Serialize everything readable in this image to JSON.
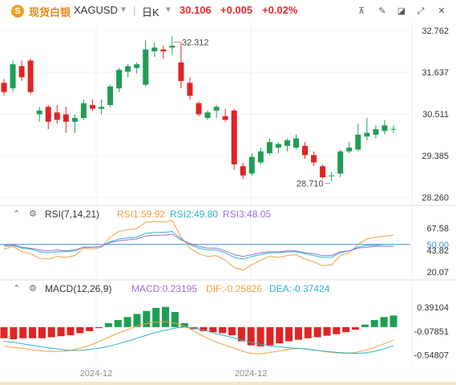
{
  "header": {
    "name": "现货白银",
    "symbol": "XAGUSD",
    "timeframe": "日K",
    "price": "30.106",
    "change": "+0.005",
    "change_pct": "+0.02%",
    "price_color": "#e62929",
    "icons": [
      "drawing-tool-icon",
      "pencil-icon",
      "eraser-icon",
      "expand-icon",
      "close-icon"
    ]
  },
  "colors": {
    "up": "#1f9d55",
    "down": "#e02424",
    "rsi1": "#f0a040",
    "rsi2": "#2ab6c8",
    "rsi3": "#a070d0",
    "macd_line": "#f0a040",
    "dea_line": "#2ab6c8",
    "hline": "#3a8ee6"
  },
  "rsi": {
    "title": "RSI(7,14,21)",
    "rsi1": "RSI1:59.92",
    "rsi2": "RSI2:49.80",
    "rsi3": "RSI3:48.05"
  },
  "macd": {
    "title": "MACD(12,26,9)",
    "macd": "MACD:0.23195",
    "dif": "DIF:-0.25826",
    "dea": "DEA:-0.37424"
  },
  "chart_data": [
    {
      "type": "candlestick",
      "y_ticks": [
        "32.762",
        "31.637",
        "30.511",
        "29.385",
        "28.260"
      ],
      "ylim": [
        28.0,
        33.0
      ],
      "annotations": [
        {
          "label": "32.312",
          "value": 32.312
        },
        {
          "label": "28.710",
          "value": 28.71
        }
      ],
      "x_labels": [
        "2024-12",
        "2024-12"
      ],
      "ohlc": [
        [
          31.35,
          31.45,
          31.0,
          31.1
        ],
        [
          31.2,
          31.95,
          31.1,
          31.85
        ],
        [
          31.8,
          31.95,
          31.4,
          31.5
        ],
        [
          31.95,
          32.0,
          31.05,
          31.1
        ],
        [
          30.5,
          30.7,
          30.3,
          30.6
        ],
        [
          30.7,
          30.75,
          30.1,
          30.3
        ],
        [
          30.55,
          30.75,
          30.25,
          30.35
        ],
        [
          30.5,
          30.7,
          30.0,
          30.3
        ],
        [
          30.3,
          30.5,
          30.0,
          30.4
        ],
        [
          30.4,
          30.9,
          30.35,
          30.8
        ],
        [
          30.75,
          30.9,
          30.6,
          30.65
        ],
        [
          30.65,
          30.9,
          30.5,
          30.7
        ],
        [
          30.75,
          31.3,
          30.7,
          31.25
        ],
        [
          31.2,
          31.75,
          31.1,
          31.7
        ],
        [
          31.65,
          31.85,
          31.5,
          31.8
        ],
        [
          31.75,
          31.9,
          31.6,
          31.85
        ],
        [
          31.3,
          32.5,
          31.25,
          32.25
        ],
        [
          32.2,
          32.45,
          32.05,
          32.3
        ],
        [
          32.25,
          32.35,
          32.0,
          32.2
        ],
        [
          32.3,
          32.6,
          32.1,
          32.35
        ],
        [
          31.9,
          32.45,
          31.2,
          31.4
        ],
        [
          31.35,
          31.5,
          30.9,
          31.0
        ],
        [
          30.8,
          30.85,
          30.45,
          30.5
        ],
        [
          30.4,
          30.6,
          30.35,
          30.55
        ],
        [
          30.6,
          30.75,
          30.4,
          30.7
        ],
        [
          30.45,
          30.65,
          30.3,
          30.35
        ],
        [
          30.6,
          30.65,
          29.0,
          29.15
        ],
        [
          29.1,
          29.2,
          28.75,
          28.85
        ],
        [
          28.9,
          29.45,
          28.85,
          29.35
        ],
        [
          29.2,
          29.6,
          29.15,
          29.5
        ],
        [
          29.45,
          29.85,
          29.4,
          29.75
        ],
        [
          29.6,
          29.75,
          29.45,
          29.7
        ],
        [
          29.65,
          29.85,
          29.5,
          29.8
        ],
        [
          29.6,
          29.95,
          29.55,
          29.85
        ],
        [
          29.65,
          29.75,
          29.3,
          29.4
        ],
        [
          29.4,
          29.5,
          29.1,
          29.2
        ],
        [
          29.1,
          29.15,
          28.75,
          28.8
        ],
        [
          28.85,
          28.95,
          28.7,
          28.85
        ],
        [
          28.9,
          29.55,
          28.8,
          29.5
        ],
        [
          29.5,
          29.75,
          29.45,
          29.6
        ],
        [
          29.55,
          30.25,
          29.5,
          29.95
        ],
        [
          29.9,
          30.4,
          29.8,
          30.0
        ],
        [
          29.95,
          30.2,
          29.85,
          30.1
        ],
        [
          30.05,
          30.35,
          29.95,
          30.2
        ],
        [
          30.1,
          30.2,
          30.0,
          30.106
        ]
      ]
    },
    {
      "type": "line",
      "y_ticks": [
        "67.58",
        "50.00",
        "43.82",
        "20.07"
      ],
      "ylim": [
        15,
        75
      ],
      "reference_line": 50.0,
      "series": [
        {
          "name": "RSI1",
          "values": [
            45,
            48,
            42,
            40,
            35,
            34,
            37,
            36,
            38,
            46,
            45,
            47,
            58,
            64,
            66,
            67,
            74,
            75,
            74,
            76,
            58,
            46,
            40,
            37,
            38,
            33,
            25,
            22,
            28,
            33,
            37,
            36,
            38,
            39,
            34,
            31,
            27,
            28,
            38,
            41,
            50,
            56,
            58,
            59,
            60
          ]
        },
        {
          "name": "RSI2",
          "values": [
            48,
            49,
            46,
            45,
            42,
            41,
            42,
            42,
            43,
            47,
            47,
            48,
            53,
            56,
            57,
            58,
            62,
            63,
            63,
            64,
            56,
            50,
            46,
            44,
            44,
            41,
            36,
            34,
            37,
            39,
            41,
            41,
            42,
            42,
            40,
            38,
            36,
            36,
            41,
            43,
            47,
            49,
            49,
            50,
            50
          ]
        },
        {
          "name": "RSI3",
          "values": [
            49,
            50,
            47,
            46,
            44,
            43,
            44,
            43,
            44,
            47,
            47,
            48,
            52,
            54,
            55,
            56,
            59,
            60,
            60,
            61,
            55,
            51,
            48,
            46,
            46,
            43,
            39,
            37,
            39,
            41,
            42,
            42,
            43,
            43,
            41,
            40,
            38,
            38,
            42,
            43,
            46,
            47,
            48,
            48,
            48
          ]
        }
      ]
    },
    {
      "type": "bar+line",
      "y_ticks": [
        "0.39104",
        "-0.07851",
        "-0.54807"
      ],
      "ylim": [
        -0.7,
        0.6
      ],
      "series": [
        {
          "name": "MACD",
          "values": [
            -0.22,
            -0.24,
            -0.22,
            -0.22,
            -0.22,
            -0.2,
            -0.18,
            -0.16,
            -0.12,
            -0.08,
            -0.02,
            0.08,
            0.14,
            0.2,
            0.26,
            0.32,
            0.38,
            0.4,
            0.3,
            0.08,
            -0.04,
            -0.08,
            -0.1,
            -0.12,
            -0.16,
            -0.28,
            -0.36,
            -0.38,
            -0.36,
            -0.32,
            -0.28,
            -0.25,
            -0.22,
            -0.2,
            -0.17,
            -0.14,
            -0.1,
            -0.05,
            0.05,
            0.14,
            0.2,
            0.23
          ]
        },
        {
          "name": "DIF",
          "values": [
            -0.38,
            -0.4,
            -0.42,
            -0.45,
            -0.47,
            -0.48,
            -0.48,
            -0.46,
            -0.42,
            -0.36,
            -0.29,
            -0.2,
            -0.12,
            -0.05,
            0.02,
            0.07,
            0.1,
            0.11,
            0.08,
            0.02,
            -0.08,
            -0.18,
            -0.27,
            -0.34,
            -0.4,
            -0.47,
            -0.52,
            -0.53,
            -0.5,
            -0.47,
            -0.44,
            -0.42,
            -0.43,
            -0.46,
            -0.49,
            -0.51,
            -0.52,
            -0.5,
            -0.46,
            -0.4,
            -0.33,
            -0.26
          ]
        },
        {
          "name": "DEA",
          "values": [
            -0.28,
            -0.3,
            -0.33,
            -0.36,
            -0.39,
            -0.42,
            -0.44,
            -0.46,
            -0.46,
            -0.44,
            -0.42,
            -0.38,
            -0.33,
            -0.28,
            -0.22,
            -0.16,
            -0.1,
            -0.06,
            -0.02,
            0.0,
            -0.02,
            -0.06,
            -0.11,
            -0.16,
            -0.2,
            -0.25,
            -0.3,
            -0.34,
            -0.37,
            -0.39,
            -0.41,
            -0.42,
            -0.44,
            -0.46,
            -0.48,
            -0.5,
            -0.51,
            -0.52,
            -0.51,
            -0.48,
            -0.43,
            -0.37
          ]
        }
      ]
    }
  ]
}
